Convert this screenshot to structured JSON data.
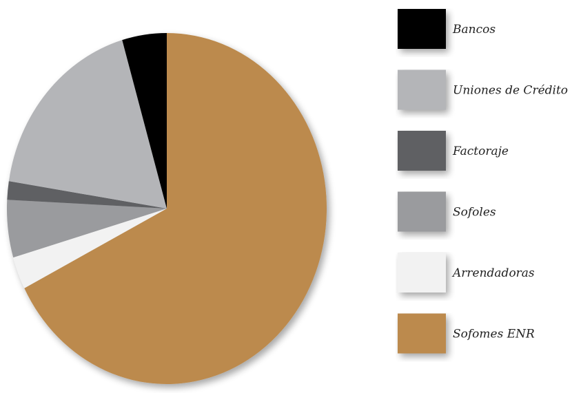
{
  "chart_data": {
    "type": "pie",
    "title": "",
    "start_angle_deg": 0,
    "direction": "clockwise",
    "slices": [
      {
        "label": "Sofomes ENR",
        "value": 67.5,
        "color": "#bc8a4d"
      },
      {
        "label": "Arrendadoras",
        "value": 3.0,
        "color": "#f2f2f2"
      },
      {
        "label": "Sofoles",
        "value": 5.3,
        "color": "#9a9b9e"
      },
      {
        "label": "Factoraje",
        "value": 1.7,
        "color": "#5f6064"
      },
      {
        "label": "Uniones de Crédito",
        "value": 18.0,
        "color": "#b4b5b8"
      },
      {
        "label": "Bancos",
        "value": 4.5,
        "color": "#000000"
      }
    ],
    "legend": {
      "placement": "right",
      "order": [
        "Bancos",
        "Uniones de Crédito",
        "Factoraje",
        "Sofoles",
        "Arrendadoras",
        "Sofomes ENR"
      ]
    }
  }
}
